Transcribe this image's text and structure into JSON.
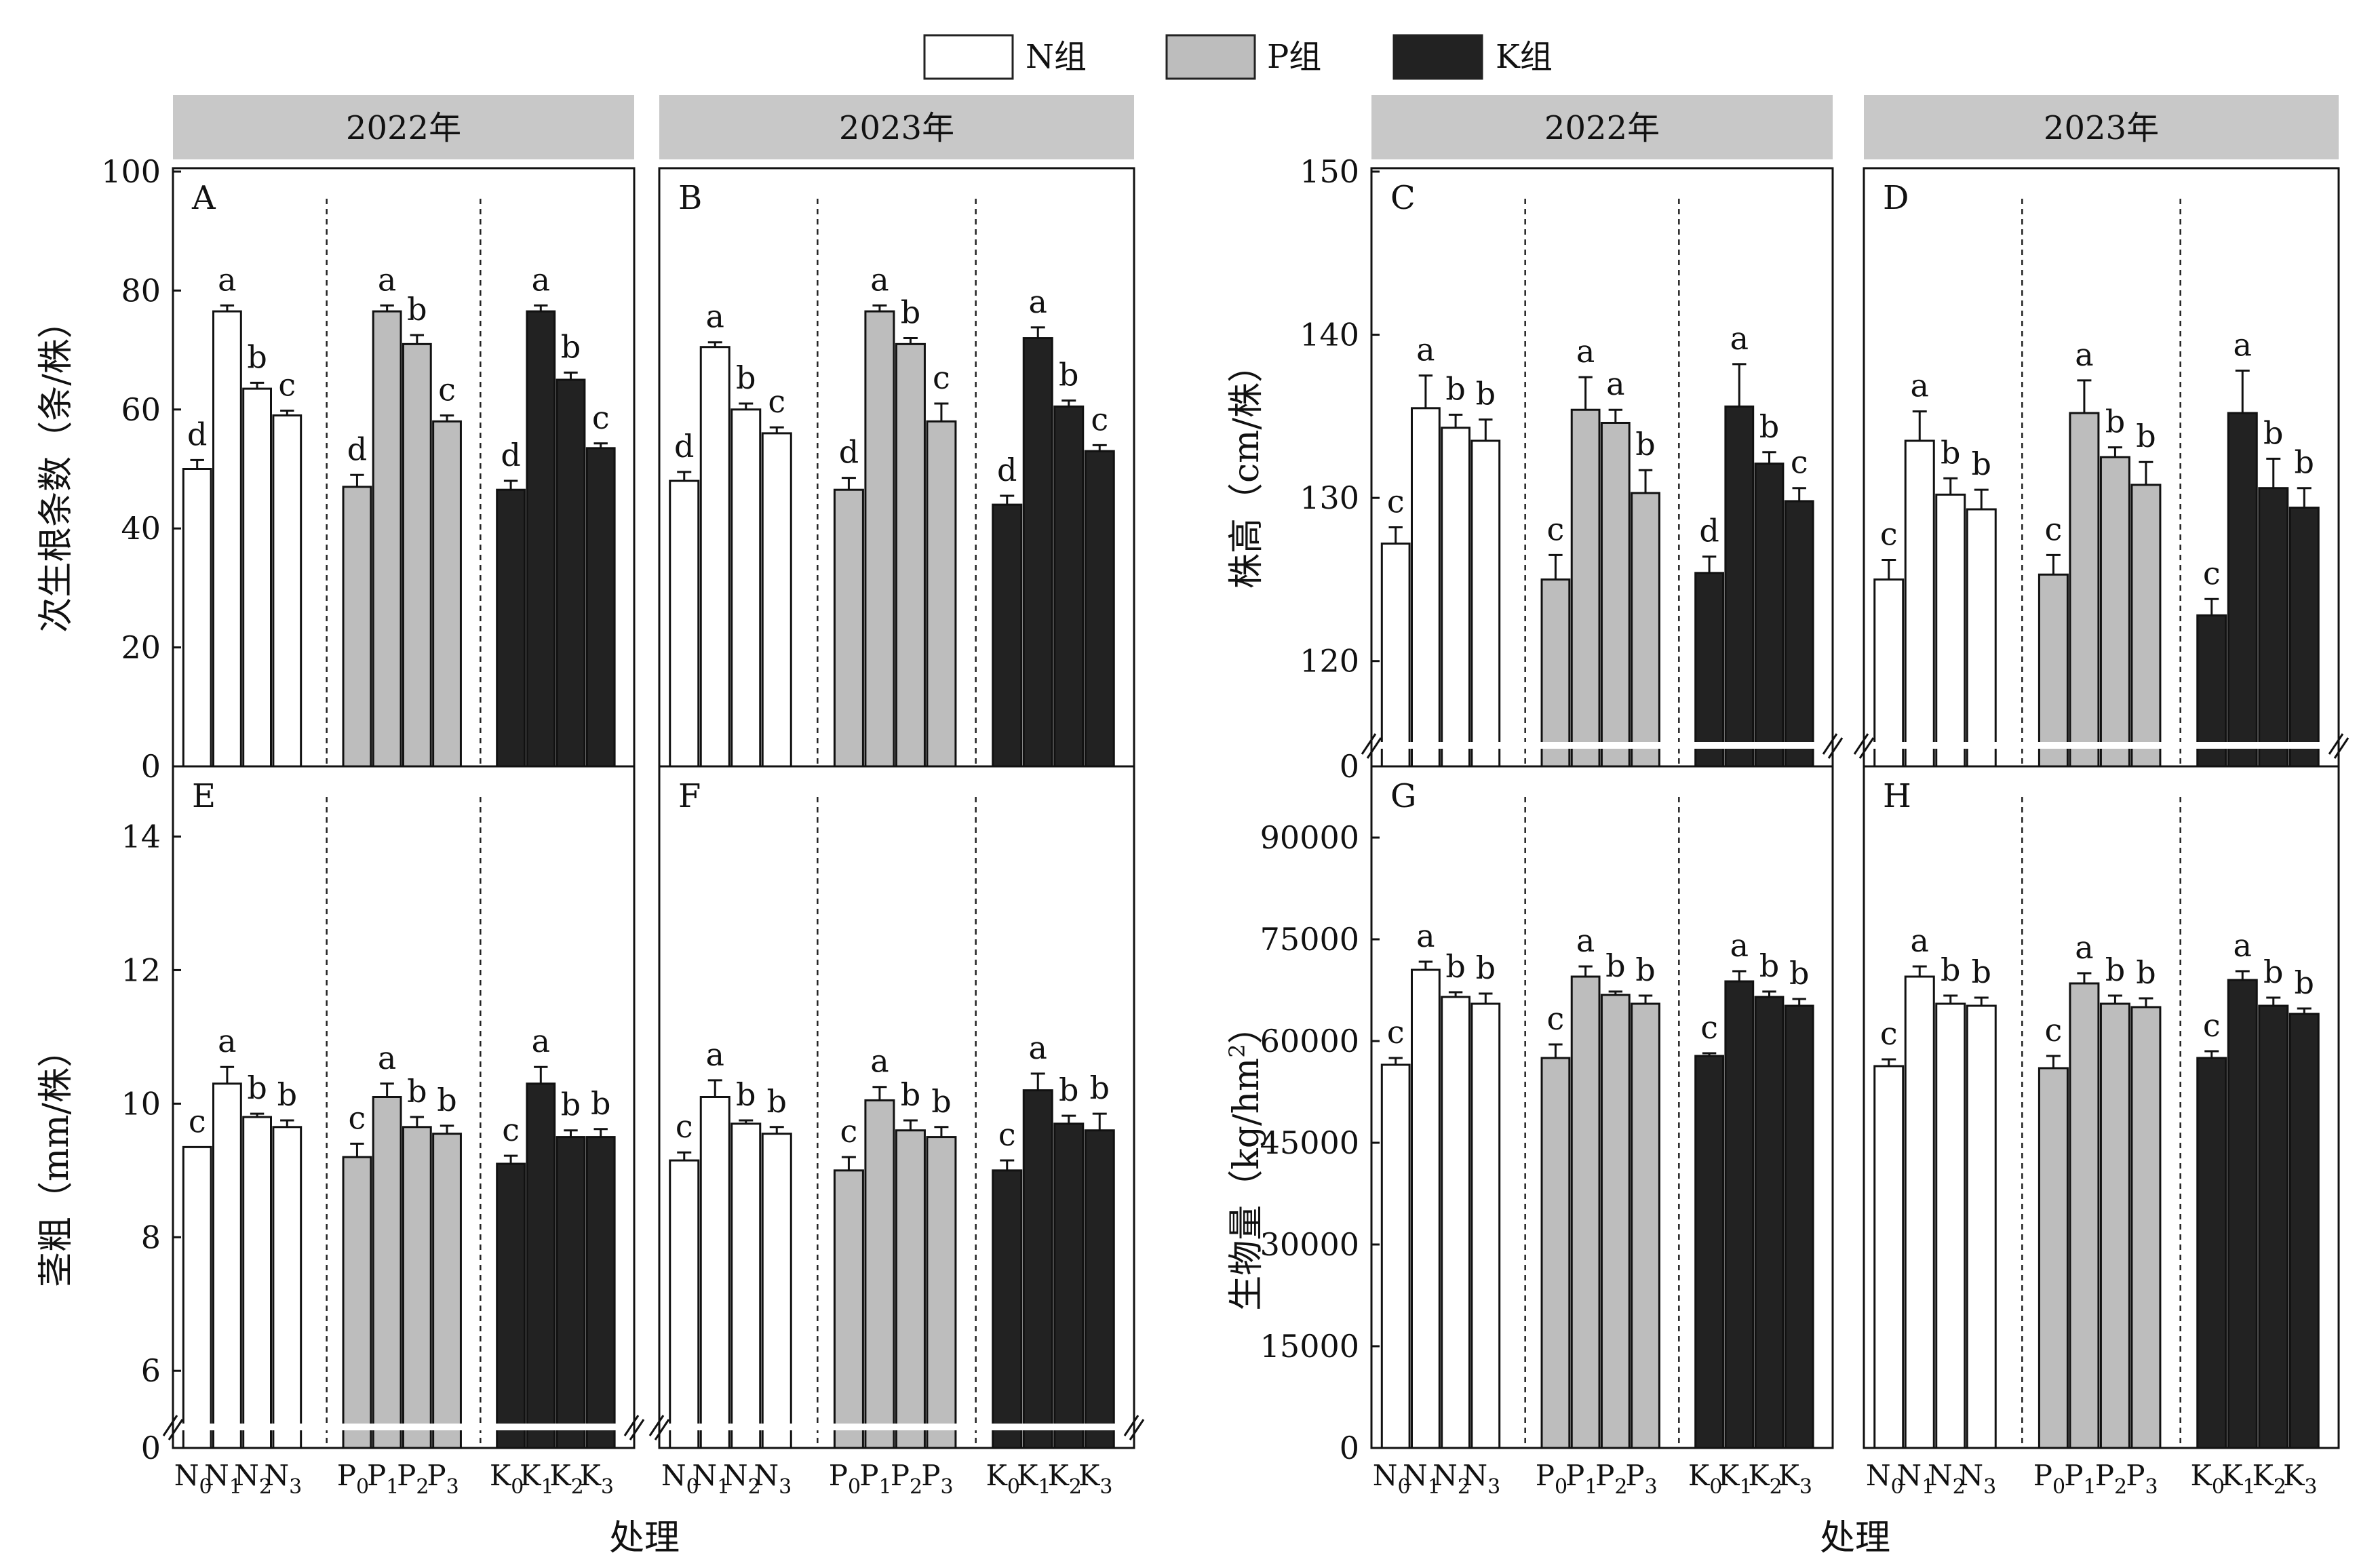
{
  "legend": {
    "items": [
      {
        "label": "N组",
        "color": "#ffffff"
      },
      {
        "label": "P组",
        "color": "#bdbdbd"
      },
      {
        "label": "K组",
        "color": "#222222"
      }
    ]
  },
  "year_labels": [
    "2022年",
    "2023年",
    "2022年",
    "2023年"
  ],
  "y_labels": {
    "roots": "次生根条数（条/株）",
    "height": "株高（cm/株）",
    "stem": "茎粗（mm/株）",
    "biomass_main": "生物量（kg/hm",
    "biomass_sup": "2",
    "biomass_end": "）"
  },
  "x_label": "处理",
  "colors": {
    "N": "#ffffff",
    "P": "#bdbdbd",
    "K": "#222222"
  },
  "chart_data": [
    {
      "panel": "A",
      "type": "bar",
      "ylim": [
        0,
        100
      ],
      "ticks": [
        0,
        20,
        40,
        60,
        80,
        100
      ],
      "categories": [
        "N0",
        "N1",
        "N2",
        "N3",
        "P0",
        "P1",
        "P2",
        "P3",
        "K0",
        "K1",
        "K2",
        "K3"
      ],
      "values": [
        50,
        76.5,
        63.5,
        59,
        47,
        76.5,
        71,
        58,
        46.5,
        76.5,
        65,
        53.5
      ],
      "errors": [
        1.5,
        1,
        1,
        0.8,
        2,
        1,
        1.5,
        1,
        1.5,
        1,
        1.2,
        0.8
      ],
      "letters": [
        "d",
        "a",
        "b",
        "c",
        "d",
        "a",
        "b",
        "c",
        "d",
        "a",
        "b",
        "c"
      ]
    },
    {
      "panel": "B",
      "type": "bar",
      "ylim": [
        0,
        100
      ],
      "ticks": [
        0,
        20,
        40,
        60,
        80,
        100
      ],
      "categories": [
        "N0",
        "N1",
        "N2",
        "N3",
        "P0",
        "P1",
        "P2",
        "P3",
        "K0",
        "K1",
        "K2",
        "K3"
      ],
      "values": [
        48,
        70.5,
        60,
        56,
        46.5,
        76.5,
        71,
        58,
        44,
        72,
        60.5,
        53
      ],
      "errors": [
        1.5,
        0.8,
        1,
        1,
        2,
        1,
        1,
        3,
        1.5,
        1.8,
        1,
        1
      ],
      "letters": [
        "d",
        "a",
        "b",
        "c",
        "d",
        "a",
        "b",
        "c",
        "d",
        "a",
        "b",
        "c"
      ]
    },
    {
      "panel": "C",
      "type": "bar",
      "ylim": [
        115,
        150
      ],
      "broken_axis": true,
      "ticks": [
        120,
        130,
        140,
        150
      ],
      "categories": [
        "N0",
        "N1",
        "N2",
        "N3",
        "P0",
        "P1",
        "P2",
        "P3",
        "K0",
        "K1",
        "K2",
        "K3"
      ],
      "values": [
        127.2,
        135.5,
        134.3,
        133.5,
        125,
        135.4,
        134.6,
        130.3,
        125.4,
        135.6,
        132.1,
        129.8
      ],
      "errors": [
        1,
        2,
        0.8,
        1.3,
        1.5,
        2,
        0.8,
        1.4,
        1,
        2.6,
        0.7,
        0.8
      ],
      "letters": [
        "c",
        "a",
        "b",
        "b",
        "c",
        "a",
        "a",
        "b",
        "d",
        "a",
        "b",
        "c"
      ]
    },
    {
      "panel": "D",
      "type": "bar",
      "ylim": [
        115,
        150
      ],
      "broken_axis": true,
      "ticks": [
        120,
        130,
        140,
        150
      ],
      "categories": [
        "N0",
        "N1",
        "N2",
        "N3",
        "P0",
        "P1",
        "P2",
        "P3",
        "K0",
        "K1",
        "K2",
        "K3"
      ],
      "values": [
        125,
        133.5,
        130.2,
        129.3,
        125.3,
        135.2,
        132.5,
        130.8,
        122.8,
        135.2,
        130.6,
        129.4
      ],
      "errors": [
        1.2,
        1.8,
        1,
        1.2,
        1.2,
        2,
        0.6,
        1.4,
        1,
        2.6,
        1.8,
        1.2
      ],
      "letters": [
        "c",
        "a",
        "b",
        "b",
        "c",
        "a",
        "b",
        "b",
        "c",
        "a",
        "b",
        "b"
      ]
    },
    {
      "panel": "E",
      "type": "bar",
      "ylim": [
        5.2,
        15
      ],
      "broken_axis": true,
      "ticks": [
        6,
        8,
        10,
        12,
        14
      ],
      "extra_zero": true,
      "categories": [
        "N0",
        "N1",
        "N2",
        "N3",
        "P0",
        "P1",
        "P2",
        "P3",
        "K0",
        "K1",
        "K2",
        "K3"
      ],
      "values": [
        9.35,
        10.3,
        9.8,
        9.65,
        9.2,
        10.1,
        9.65,
        9.55,
        9.1,
        10.3,
        9.5,
        9.5
      ],
      "errors": [
        0,
        0.25,
        0.05,
        0.1,
        0.2,
        0.2,
        0.15,
        0.12,
        0.12,
        0.25,
        0.1,
        0.12
      ],
      "letters": [
        "c",
        "a",
        "b",
        "b",
        "c",
        "a",
        "b",
        "b",
        "c",
        "a",
        "b",
        "b"
      ]
    },
    {
      "panel": "F",
      "type": "bar",
      "ylim": [
        5.2,
        15
      ],
      "broken_axis": true,
      "ticks": [
        6,
        8,
        10,
        12,
        14
      ],
      "extra_zero": true,
      "categories": [
        "N0",
        "N1",
        "N2",
        "N3",
        "P0",
        "P1",
        "P2",
        "P3",
        "K0",
        "K1",
        "K2",
        "K3"
      ],
      "values": [
        9.15,
        10.1,
        9.7,
        9.55,
        9,
        10.05,
        9.6,
        9.5,
        9,
        10.2,
        9.7,
        9.6
      ],
      "errors": [
        0.12,
        0.25,
        0.05,
        0.1,
        0.2,
        0.2,
        0.15,
        0.15,
        0.15,
        0.25,
        0.12,
        0.25
      ],
      "letters": [
        "c",
        "a",
        "b",
        "b",
        "c",
        "a",
        "b",
        "b",
        "c",
        "a",
        "b",
        "b"
      ]
    },
    {
      "panel": "G",
      "type": "bar",
      "ylim": [
        0,
        100000
      ],
      "ticks": [
        0,
        15000,
        30000,
        45000,
        60000,
        75000,
        90000
      ],
      "categories": [
        "N0",
        "N1",
        "N2",
        "N3",
        "P0",
        "P1",
        "P2",
        "P3",
        "K0",
        "K1",
        "K2",
        "K3"
      ],
      "values": [
        56500,
        70500,
        66500,
        65500,
        57500,
        69500,
        66800,
        65500,
        57800,
        68800,
        66500,
        65200
      ],
      "errors": [
        1000,
        1200,
        700,
        1500,
        2000,
        1500,
        500,
        1200,
        400,
        1500,
        800,
        1000
      ],
      "letters": [
        "c",
        "a",
        "b",
        "b",
        "c",
        "a",
        "b",
        "b",
        "c",
        "a",
        "b",
        "b"
      ]
    },
    {
      "panel": "H",
      "type": "bar",
      "ylim": [
        0,
        100000
      ],
      "ticks": [
        0,
        15000,
        30000,
        45000,
        60000,
        75000,
        90000
      ],
      "categories": [
        "N0",
        "N1",
        "N2",
        "N3",
        "P0",
        "P1",
        "P2",
        "P3",
        "K0",
        "K1",
        "K2",
        "K3"
      ],
      "values": [
        56300,
        69500,
        65500,
        65200,
        56000,
        68500,
        65500,
        65000,
        57500,
        69000,
        65200,
        64000
      ],
      "errors": [
        1000,
        1500,
        1200,
        1200,
        1800,
        1500,
        1200,
        1300,
        1000,
        1300,
        1200,
        800
      ],
      "letters": [
        "c",
        "a",
        "b",
        "b",
        "c",
        "a",
        "b",
        "b",
        "c",
        "a",
        "b",
        "b"
      ]
    }
  ]
}
